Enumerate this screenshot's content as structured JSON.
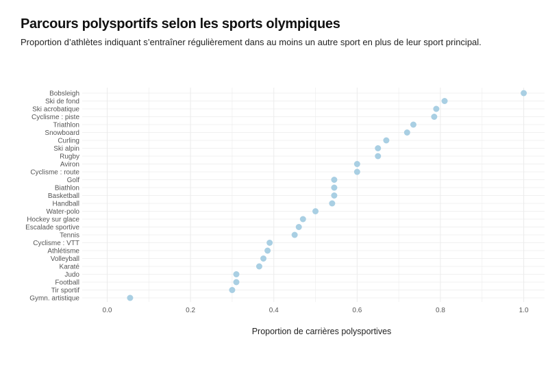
{
  "title": "Parcours polysportifs selon les sports olympiques",
  "subtitle": "Proportion d’athlètes indiquant s’entraîner régulièrement dans au moins un autre sport en plus de leur sport principal.",
  "colors": {
    "point": "#a9cfe3",
    "grid": "#ebebeb"
  },
  "chart_data": {
    "type": "scatter",
    "title": "Parcours polysportifs selon les sports olympiques",
    "subtitle": "Proportion d’athlètes indiquant s’entraîner régulièrement dans au moins un autre sport en plus de leur sport principal.",
    "xlabel": "Proportion de carrières polysportives",
    "ylabel": "",
    "xlim": [
      -0.06,
      1.05
    ],
    "xticks": [
      0.0,
      0.2,
      0.4,
      0.6,
      0.8,
      1.0
    ],
    "xtick_labels": [
      "0.0",
      "0.2",
      "0.4",
      "0.6",
      "0.8",
      "1.0"
    ],
    "grid": true,
    "legend": "none",
    "categories": [
      "Bobsleigh",
      "Ski de fond",
      "Ski acrobatique",
      "Cyclisme : piste",
      "Triathlon",
      "Snowboard",
      "Curling",
      "Ski alpin",
      "Rugby",
      "Aviron",
      "Cyclisme : route",
      "Golf",
      "Biathlon",
      "Basketball",
      "Handball",
      "Water-polo",
      "Hockey sur glace",
      "Escalade sportive",
      "Tennis",
      "Cyclisme : VTT",
      "Athlétisme",
      "Volleyball",
      "Karaté",
      "Judo",
      "Football",
      "Tir sportif",
      "Gymn. artistique"
    ],
    "values": [
      1.0,
      0.81,
      0.79,
      0.785,
      0.735,
      0.72,
      0.67,
      0.65,
      0.65,
      0.6,
      0.6,
      0.545,
      0.545,
      0.545,
      0.54,
      0.5,
      0.47,
      0.46,
      0.45,
      0.39,
      0.385,
      0.375,
      0.365,
      0.31,
      0.31,
      0.3,
      0.055
    ]
  }
}
